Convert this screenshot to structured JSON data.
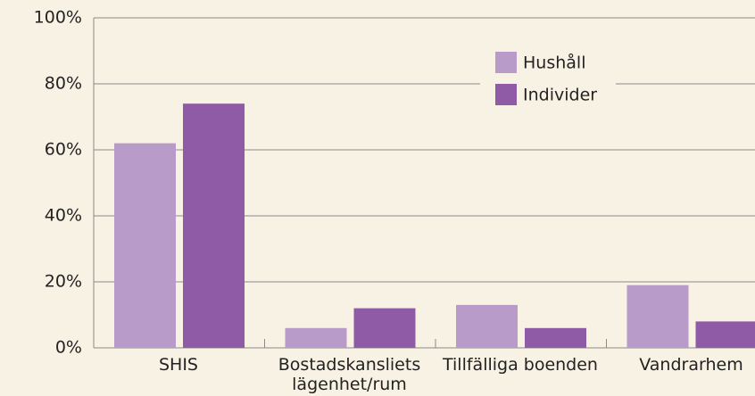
{
  "chart_data": {
    "type": "bar",
    "categories": [
      "SHIS",
      "Bostadskansliets lägenhet/rum",
      "Tillfälliga boenden",
      "Vandrarhem"
    ],
    "series": [
      {
        "name": "Hushåll",
        "color": "#b99bca",
        "values": [
          62,
          6,
          13,
          19
        ]
      },
      {
        "name": "Individer",
        "color": "#8f5ba6",
        "values": [
          74,
          12,
          6,
          8
        ]
      }
    ],
    "ylim": [
      0,
      100
    ],
    "yticks": [
      {
        "value": 0,
        "label": "0%"
      },
      {
        "value": 20,
        "label": "20%"
      },
      {
        "value": 40,
        "label": "40%"
      },
      {
        "value": 60,
        "label": "60%"
      },
      {
        "value": 80,
        "label": "80%"
      },
      {
        "value": 100,
        "label": "100%"
      }
    ],
    "grid": true,
    "legend": "upper right"
  }
}
